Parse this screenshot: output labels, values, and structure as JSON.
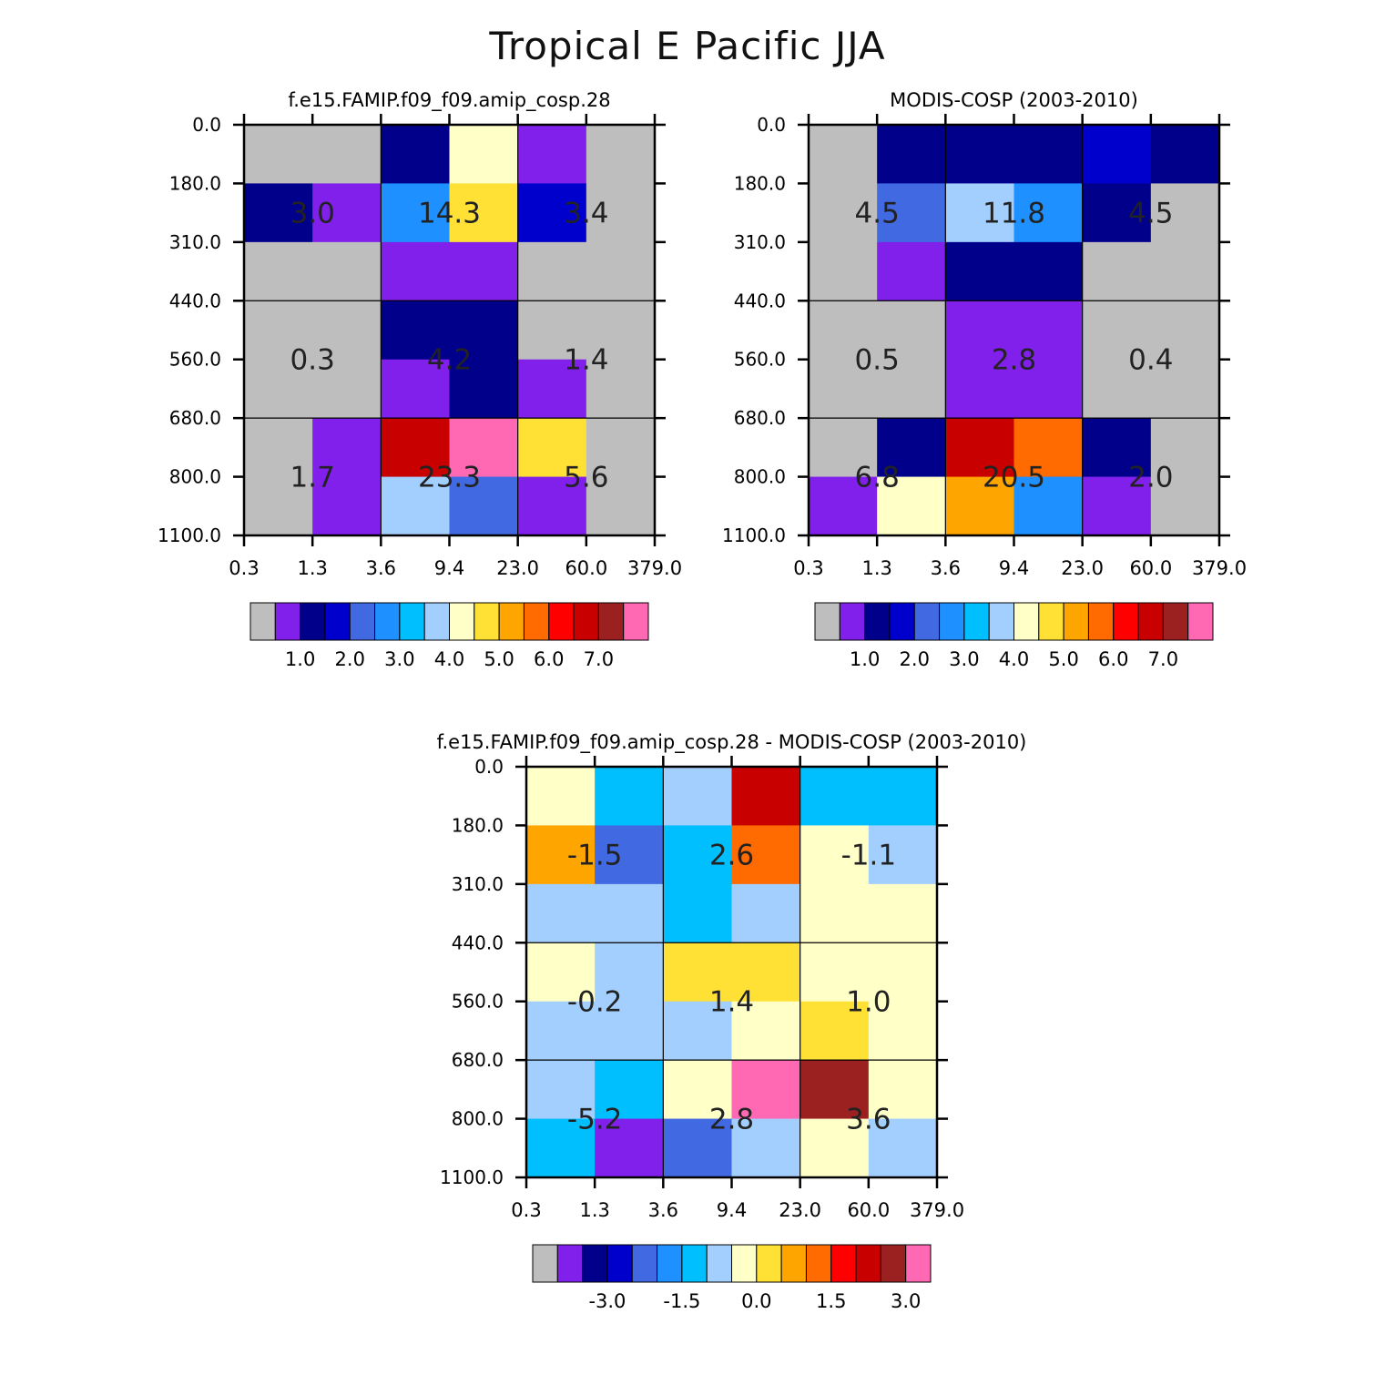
{
  "figure_title": "Tropical E Pacific JJA",
  "palette": [
    "#bebebe",
    "#8020ea",
    "#00008b",
    "#0000cd",
    "#4169e1",
    "#1e90ff",
    "#00bfff",
    "#a2cffe",
    "#ffffc8",
    "#ffe135",
    "#ffa500",
    "#ff6b00",
    "#ff0000",
    "#c80000",
    "#9b2020",
    "#ff69b4"
  ],
  "chart_data": [
    {
      "type": "heatmap",
      "title": "f.e15.FAMIP.f09_f09.amip_cosp.28",
      "x_ticks": [
        "0.3",
        "1.3",
        "3.6",
        "9.4",
        "23.0",
        "60.0",
        "379.0"
      ],
      "y_ticks": [
        "0.0",
        "180.0",
        "310.0",
        "440.0",
        "560.0",
        "680.0",
        "800.0",
        "1100.0"
      ],
      "cell_colors": [
        [
          0,
          0,
          2,
          8,
          1,
          0
        ],
        [
          2,
          1,
          5,
          9,
          3,
          0
        ],
        [
          0,
          0,
          1,
          1,
          0,
          0
        ],
        [
          0,
          0,
          2,
          2,
          0,
          0
        ],
        [
          0,
          0,
          1,
          2,
          1,
          0
        ],
        [
          0,
          1,
          13,
          15,
          9,
          0
        ],
        [
          0,
          1,
          7,
          4,
          1,
          0
        ]
      ],
      "box_values": [
        [
          "3.0",
          "14.3",
          "3.4"
        ],
        [
          "0.3",
          "4.2",
          "1.4"
        ],
        [
          "1.7",
          "23.3",
          "5.6"
        ]
      ],
      "colorbar_labels": [
        "1.0",
        "2.0",
        "3.0",
        "4.0",
        "5.0",
        "6.0",
        "7.0"
      ]
    },
    {
      "type": "heatmap",
      "title": "MODIS-COSP (2003-2010)",
      "x_ticks": [
        "0.3",
        "1.3",
        "3.6",
        "9.4",
        "23.0",
        "60.0",
        "379.0"
      ],
      "y_ticks": [
        "0.0",
        "180.0",
        "310.0",
        "440.0",
        "560.0",
        "680.0",
        "800.0",
        "1100.0"
      ],
      "cell_colors": [
        [
          0,
          2,
          2,
          2,
          3,
          2
        ],
        [
          0,
          4,
          7,
          5,
          2,
          0
        ],
        [
          0,
          1,
          2,
          2,
          0,
          0
        ],
        [
          0,
          0,
          1,
          1,
          0,
          0
        ],
        [
          0,
          0,
          1,
          1,
          0,
          0
        ],
        [
          0,
          2,
          13,
          11,
          2,
          0
        ],
        [
          1,
          8,
          10,
          5,
          1,
          0
        ]
      ],
      "box_values": [
        [
          "4.5",
          "11.8",
          "4.5"
        ],
        [
          "0.5",
          "2.8",
          "0.4"
        ],
        [
          "6.8",
          "20.5",
          "2.0"
        ]
      ],
      "colorbar_labels": [
        "1.0",
        "2.0",
        "3.0",
        "4.0",
        "5.0",
        "6.0",
        "7.0"
      ]
    },
    {
      "type": "heatmap",
      "title": "f.e15.FAMIP.f09_f09.amip_cosp.28 - MODIS-COSP (2003-2010)",
      "x_ticks": [
        "0.3",
        "1.3",
        "3.6",
        "9.4",
        "23.0",
        "60.0",
        "379.0"
      ],
      "y_ticks": [
        "0.0",
        "180.0",
        "310.0",
        "440.0",
        "560.0",
        "680.0",
        "800.0",
        "1100.0"
      ],
      "cell_colors": [
        [
          8,
          6,
          7,
          13,
          6,
          6
        ],
        [
          10,
          4,
          6,
          11,
          8,
          7
        ],
        [
          7,
          7,
          6,
          7,
          8,
          8
        ],
        [
          8,
          7,
          9,
          9,
          8,
          8
        ],
        [
          7,
          7,
          7,
          8,
          9,
          8
        ],
        [
          7,
          6,
          8,
          15,
          14,
          8
        ],
        [
          6,
          1,
          4,
          7,
          8,
          7
        ]
      ],
      "box_values": [
        [
          "-1.5",
          "2.6",
          "-1.1"
        ],
        [
          "-0.2",
          "1.4",
          "1.0"
        ],
        [
          "-5.2",
          "2.8",
          "3.6"
        ]
      ],
      "colorbar_labels": [
        "-3.0",
        "-1.5",
        "0.0",
        "1.5",
        "3.0"
      ]
    }
  ]
}
